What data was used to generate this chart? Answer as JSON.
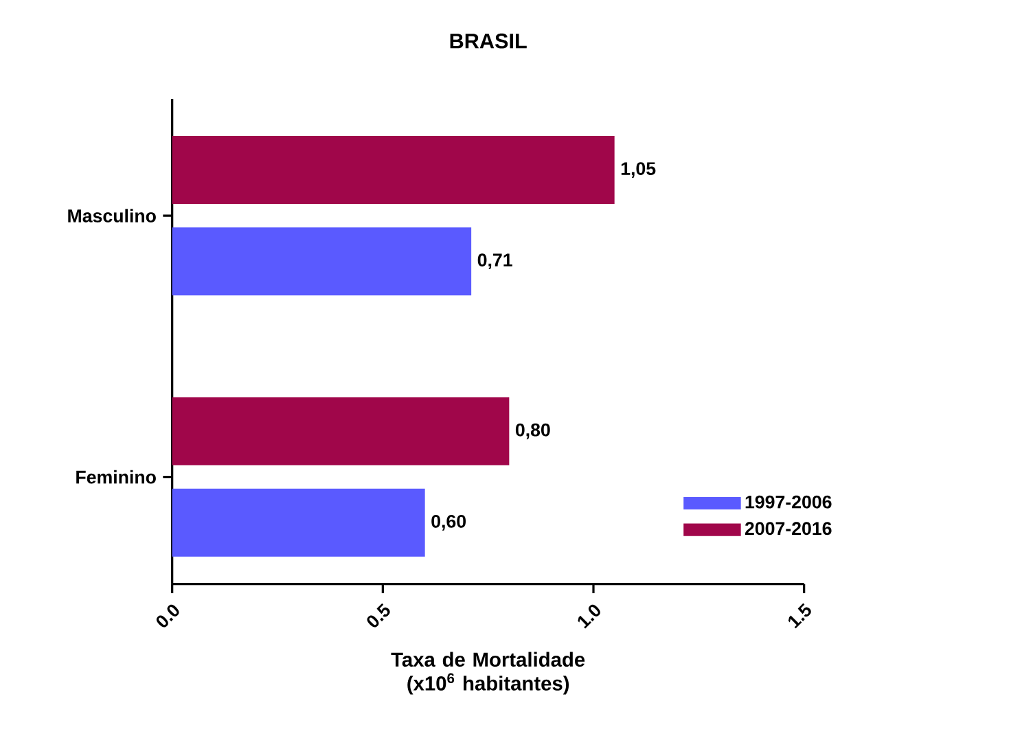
{
  "chart_data": {
    "type": "bar",
    "orientation": "horizontal",
    "title": "BRASIL",
    "xlabel": "Taxa de Mortalidade (x10$^{6}$ habitantes)",
    "categories": [
      "Masculino",
      "Feminino"
    ],
    "series": [
      {
        "name": "1997-2006",
        "color": "#5a5aff",
        "values": [
          0.71,
          0.6
        ],
        "value_labels": [
          "0,71",
          "0,60"
        ]
      },
      {
        "name": "2007-2016",
        "color": "#a0064a",
        "values": [
          1.05,
          0.8
        ],
        "value_labels": [
          "1,05",
          "0,80"
        ]
      }
    ],
    "xlim": [
      0,
      1.5
    ],
    "xticks": [
      {
        "value": 0,
        "label": "0.0"
      },
      {
        "value": 0.5,
        "label": "0.5"
      },
      {
        "value": 1,
        "label": "1.0"
      },
      {
        "value": 1.5,
        "label": "1.5"
      }
    ],
    "grid": false,
    "legend": "bottom right"
  }
}
